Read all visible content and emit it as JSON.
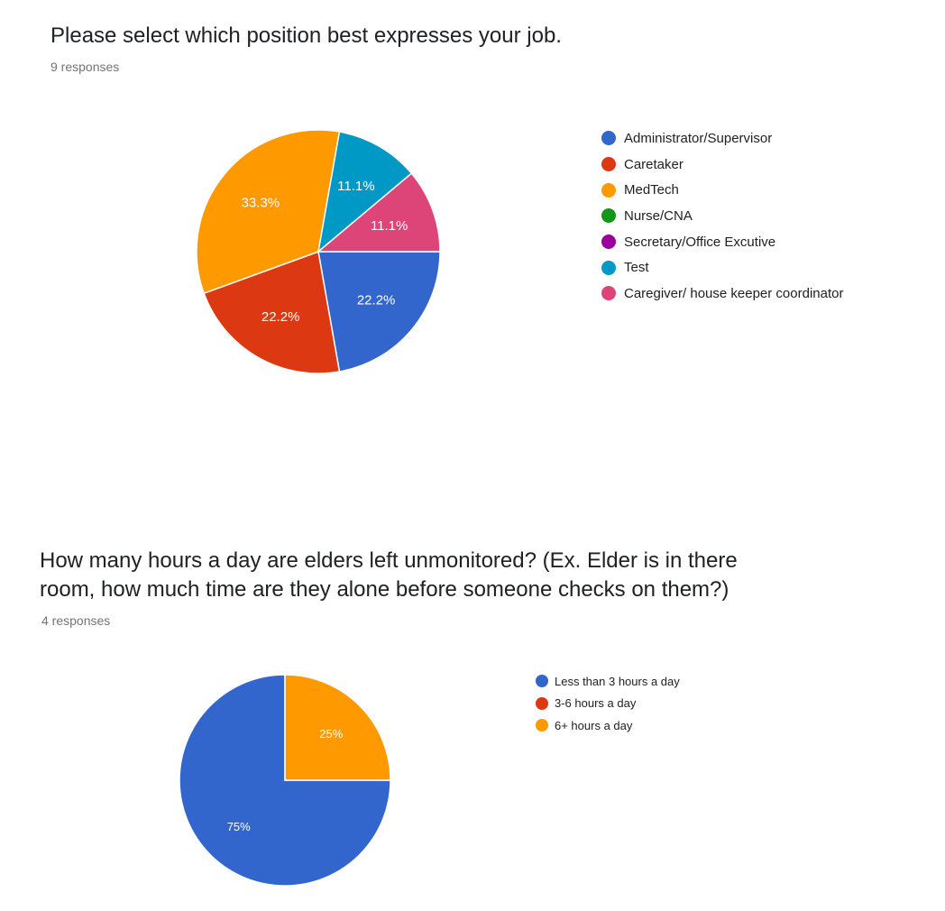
{
  "questions": [
    {
      "title": "Please select which position best expresses your job.",
      "response_count": "9 responses"
    },
    {
      "title_lines": [
        "How many hours a day are elders left unmonitored? (Ex. Elder is in there",
        "room, how much time are they alone before someone checks on them?)"
      ],
      "response_count": "4 responses"
    }
  ],
  "chart_data": [
    {
      "type": "pie",
      "title": "",
      "legend_position": "right",
      "slices": [
        {
          "label": "Administrator/Supervisor",
          "value": 22.2,
          "display": "22.2%",
          "color": "#3366cc"
        },
        {
          "label": "Caretaker",
          "value": 22.2,
          "display": "22.2%",
          "color": "#dc3912"
        },
        {
          "label": "MedTech",
          "value": 33.3,
          "display": "33.3%",
          "color": "#ff9900"
        },
        {
          "label": "Nurse/CNA",
          "value": 0,
          "display": "",
          "color": "#109618"
        },
        {
          "label": "Secretary/Office Excutive",
          "value": 0,
          "display": "",
          "color": "#990099"
        },
        {
          "label": "Test",
          "value": 11.1,
          "display": "11.1%",
          "color": "#0099c6"
        },
        {
          "label": "Caregiver/ house keeper coordinator",
          "value": 11.1,
          "display": "11.1%",
          "color": "#dd4477"
        }
      ]
    },
    {
      "type": "pie",
      "title": "",
      "legend_position": "right",
      "slices": [
        {
          "label": "Less than 3 hours a day",
          "value": 75,
          "display": "75%",
          "color": "#3366cc"
        },
        {
          "label": "3-6 hours a day",
          "value": 0,
          "display": "",
          "color": "#dc3912"
        },
        {
          "label": "6+ hours a day",
          "value": 25,
          "display": "25%",
          "color": "#ff9900"
        }
      ]
    }
  ]
}
